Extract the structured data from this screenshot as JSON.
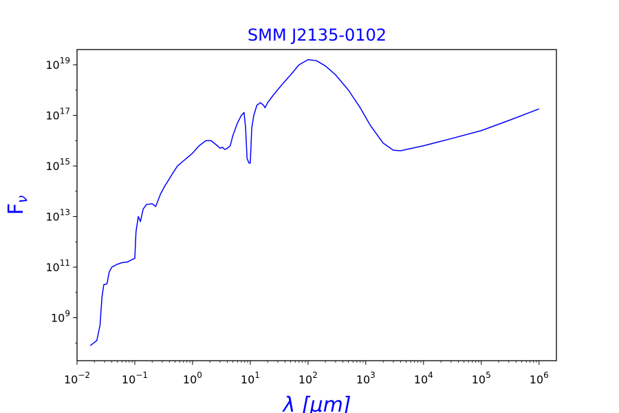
{
  "chart_data": {
    "type": "line",
    "title": "SMM J2135-0102",
    "xlabel": "λ [μm]",
    "ylabel_base": "F",
    "ylabel_sub": "ν",
    "x_scale": "log",
    "y_scale": "log",
    "xlim": [
      0.01,
      2000000
    ],
    "ylim": [
      20000000,
      4e+19
    ],
    "grid": false,
    "line_color": "#0000ff",
    "title_color": "#0000ff",
    "label_color": "#0000ff",
    "x_ticks": [
      {
        "base": "10",
        "exp": "−2",
        "value": 0.01
      },
      {
        "base": "10",
        "exp": "−1",
        "value": 0.1
      },
      {
        "base": "10",
        "exp": "0",
        "value": 1
      },
      {
        "base": "10",
        "exp": "1",
        "value": 10
      },
      {
        "base": "10",
        "exp": "2",
        "value": 100
      },
      {
        "base": "10",
        "exp": "3",
        "value": 1000
      },
      {
        "base": "10",
        "exp": "4",
        "value": 10000
      },
      {
        "base": "10",
        "exp": "5",
        "value": 100000
      },
      {
        "base": "10",
        "exp": "6",
        "value": 1000000
      }
    ],
    "y_ticks": [
      {
        "base": "10",
        "exp": "9",
        "value": 1000000000.0
      },
      {
        "base": "10",
        "exp": "11",
        "value": 100000000000.0
      },
      {
        "base": "10",
        "exp": "13",
        "value": 10000000000000.0
      },
      {
        "base": "10",
        "exp": "15",
        "value": 1000000000000000.0
      },
      {
        "base": "10",
        "exp": "17",
        "value": 1e+17
      },
      {
        "base": "10",
        "exp": "19",
        "value": 1e+19
      }
    ],
    "series": [
      {
        "points": [
          [
            0.017,
            79000000.0
          ],
          [
            0.022,
            125000000.0
          ],
          [
            0.025,
            500000000.0
          ],
          [
            0.027,
            6300000000.0
          ],
          [
            0.029,
            20000000000.0
          ],
          [
            0.033,
            22000000000.0
          ],
          [
            0.036,
            63000000000.0
          ],
          [
            0.04,
            100000000000.0
          ],
          [
            0.05,
            130000000000.0
          ],
          [
            0.06,
            150000000000.0
          ],
          [
            0.075,
            160000000000.0
          ],
          [
            0.09,
            200000000000.0
          ],
          [
            0.1,
            220000000000.0
          ],
          [
            0.105,
            2500000000000.0
          ],
          [
            0.115,
            10000000000000.0
          ],
          [
            0.125,
            6300000000000.0
          ],
          [
            0.14,
            20000000000000.0
          ],
          [
            0.16,
            30000000000000.0
          ],
          [
            0.2,
            32000000000000.0
          ],
          [
            0.23,
            25000000000000.0
          ],
          [
            0.28,
            79000000000000.0
          ],
          [
            0.33,
            160000000000000.0
          ],
          [
            0.4,
            320000000000000.0
          ],
          [
            0.45,
            500000000000000.0
          ],
          [
            0.55,
            1000000000000000.0
          ],
          [
            0.7,
            1600000000000000.0
          ],
          [
            1.0,
            3200000000000000.0
          ],
          [
            1.3,
            6300000000000000.0
          ],
          [
            1.7,
            1e+16
          ],
          [
            2.1,
            1e+16
          ],
          [
            2.7,
            6300000000000000.0
          ],
          [
            3.0,
            5000000000000000.0
          ],
          [
            3.3,
            5500000000000000.0
          ],
          [
            3.6,
            4500000000000000.0
          ],
          [
            4.0,
            5000000000000000.0
          ],
          [
            4.5,
            6300000000000000.0
          ],
          [
            5.0,
            1.6e+16
          ],
          [
            6.0,
            5e+16
          ],
          [
            7.0,
            1e+17
          ],
          [
            7.8,
            1.3e+17
          ],
          [
            8.3,
            3.2e+16
          ],
          [
            8.8,
            2000000000000000.0
          ],
          [
            9.5,
            1300000000000000.0
          ],
          [
            10.0,
            1300000000000000.0
          ],
          [
            10.6,
            3.2e+16
          ],
          [
            11.5,
            1e+17
          ],
          [
            13.0,
            2.5e+17
          ],
          [
            15.0,
            3.2e+17
          ],
          [
            17.0,
            2.5e+17
          ],
          [
            18.0,
            2e+17
          ],
          [
            20.0,
            3.2e+17
          ],
          [
            25.0,
            6.3e+17
          ],
          [
            35.0,
            1.6e+18
          ],
          [
            50.0,
            4e+18
          ],
          [
            70.0,
            1e+19
          ],
          [
            100.0,
            1.6e+19
          ],
          [
            140.0,
            1.45e+19
          ],
          [
            200.0,
            9e+18
          ],
          [
            300.0,
            4e+18
          ],
          [
            500.0,
            1e+18
          ],
          [
            800.0,
            2e+17
          ],
          [
            1200.0,
            4e+16
          ],
          [
            2000.0,
            8000000000000000.0
          ],
          [
            3000.0,
            4200000000000000.0
          ],
          [
            4000.0,
            4000000000000000.0
          ],
          [
            10000.0,
            6300000000000000.0
          ],
          [
            30000.0,
            1.2e+16
          ],
          [
            100000.0,
            2.5e+16
          ],
          [
            300000.0,
            6.3e+16
          ],
          [
            1000000.0,
            1.8e+17
          ]
        ]
      }
    ]
  }
}
